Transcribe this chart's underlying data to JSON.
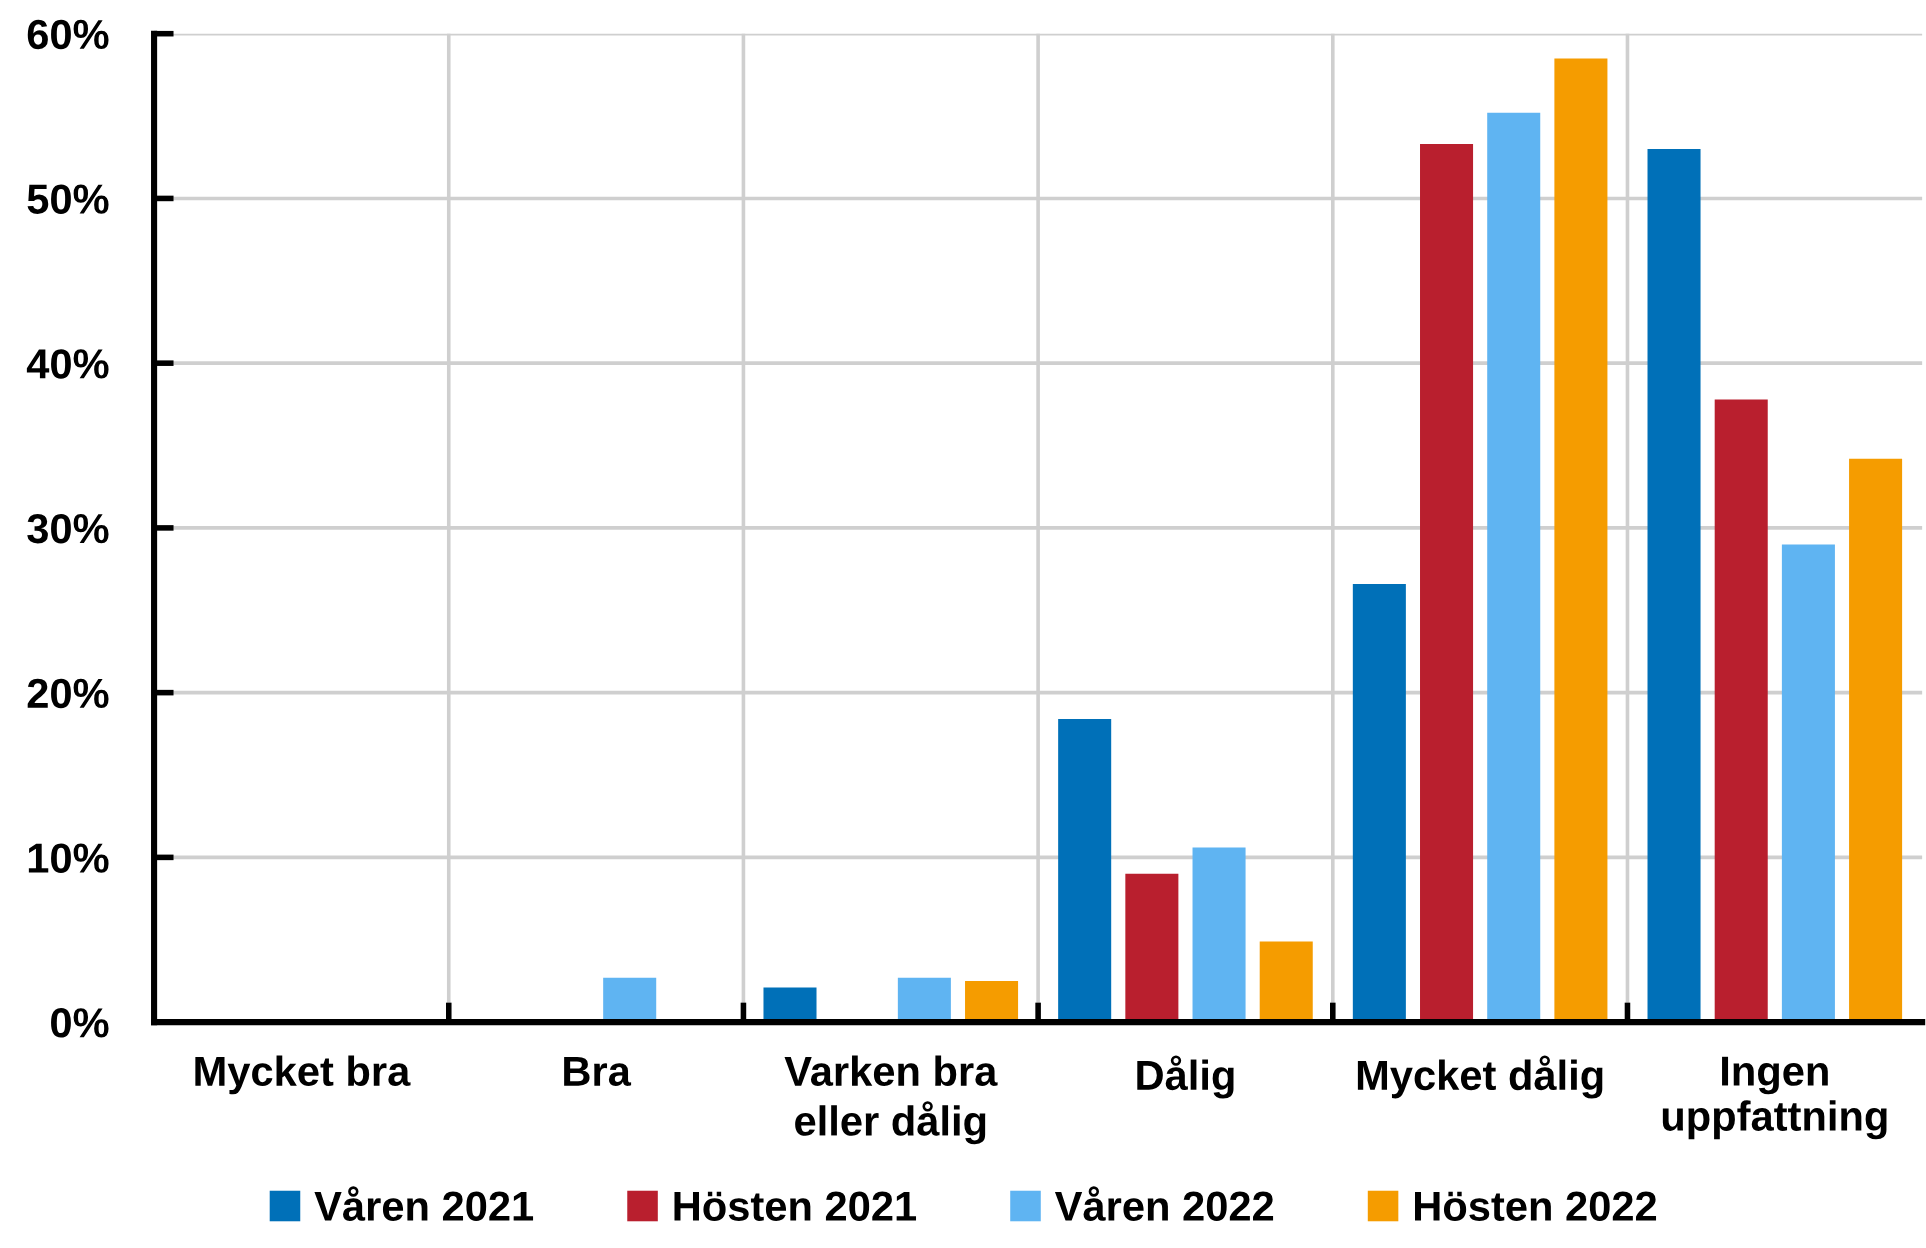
{
  "chart_data": {
    "type": "bar",
    "categories": [
      "Mycket bra",
      "Bra",
      "Varken bra\neller dålig",
      "Dålig",
      "Mycket dålig",
      "Ingen\nuppfattning"
    ],
    "series": [
      {
        "name": "Våren 2021",
        "color": "#0070b8",
        "values": [
          0,
          0,
          2.1,
          18.4,
          26.6,
          53.0
        ]
      },
      {
        "name": "Hösten 2021",
        "color": "#b91f2e",
        "values": [
          0,
          0,
          0,
          9.0,
          53.3,
          37.8
        ]
      },
      {
        "name": "Våren 2022",
        "color": "#5fb4f2",
        "values": [
          0,
          2.7,
          2.7,
          10.6,
          55.2,
          29.0
        ]
      },
      {
        "name": "Hösten 2022",
        "color": "#f59c00",
        "values": [
          0,
          0,
          2.5,
          4.9,
          58.5,
          34.2
        ]
      }
    ],
    "ylim": [
      0,
      60
    ],
    "yticks": [
      {
        "value": 0,
        "label": "0%"
      },
      {
        "value": 10,
        "label": "10%"
      },
      {
        "value": 20,
        "label": "20%"
      },
      {
        "value": 30,
        "label": "30%"
      },
      {
        "value": 40,
        "label": "40%"
      },
      {
        "value": 50,
        "label": "50%"
      },
      {
        "value": 60,
        "label": "60%"
      }
    ],
    "grid": true,
    "legend": "bottom"
  }
}
